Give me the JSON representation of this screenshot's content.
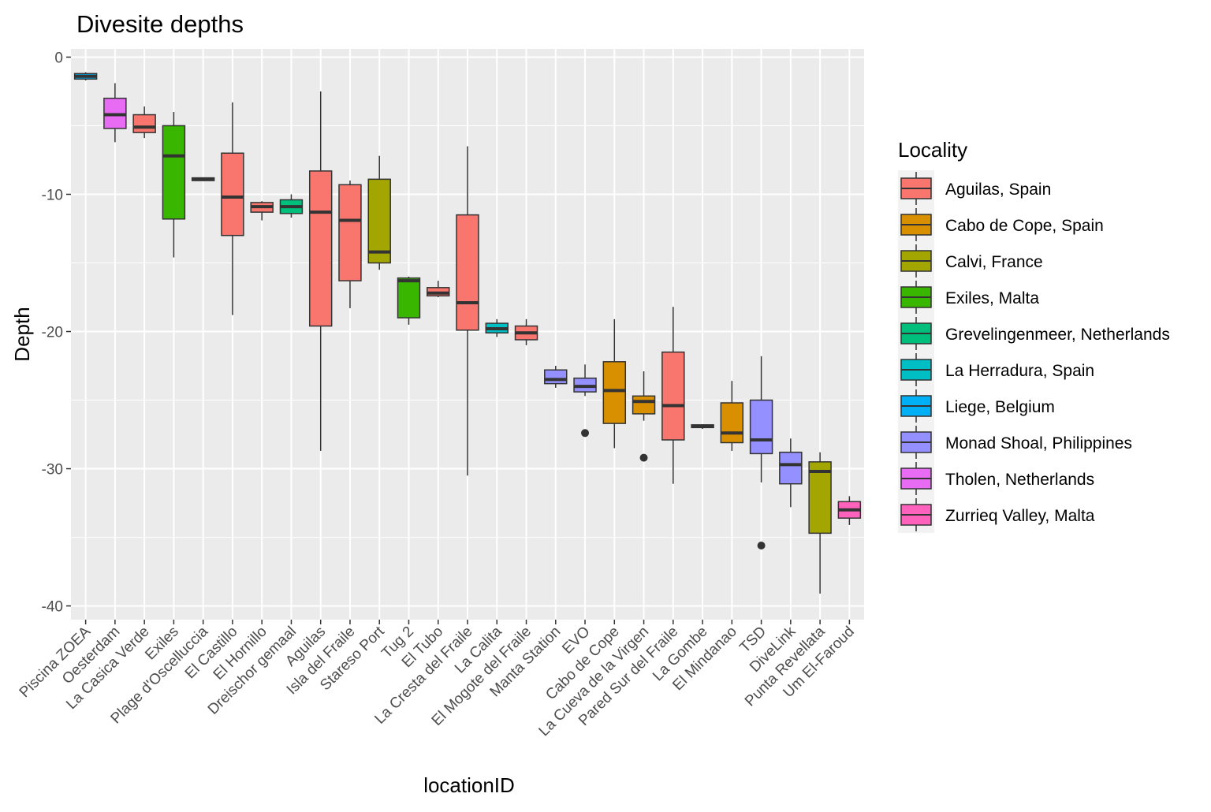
{
  "chart_data": {
    "type": "box",
    "title": "Divesite depths",
    "xlabel": "locationID",
    "ylabel": "Depth",
    "ylim": [
      -41,
      0.6
    ],
    "yticks": [
      0,
      -10,
      -20,
      -30,
      -40
    ],
    "grid": true,
    "legend_position": "right",
    "legend": {
      "title": "Locality",
      "entries": [
        {
          "label": "Aguilas, Spain",
          "color": "#F8766D"
        },
        {
          "label": "Cabo de Cope, Spain",
          "color": "#D89000"
        },
        {
          "label": "Calvi, France",
          "color": "#A3A500"
        },
        {
          "label": "Exiles, Malta",
          "color": "#39B600"
        },
        {
          "label": "Grevelingenmeer, Netherlands",
          "color": "#00BF7D"
        },
        {
          "label": "La Herradura, Spain",
          "color": "#00BFC4"
        },
        {
          "label": "Liege, Belgium",
          "color": "#00B0F6"
        },
        {
          "label": "Monad Shoal, Philippines",
          "color": "#9590FF"
        },
        {
          "label": "Tholen, Netherlands",
          "color": "#E76BF3"
        },
        {
          "label": "Zurrieq Valley, Malta",
          "color": "#FF62BC"
        }
      ]
    },
    "categories": [
      "Piscina ZOEA",
      "Oesterdam",
      "La Casica Verde",
      "Exiles",
      "Plage d'Oscelluccia",
      "El Castillo",
      "El Hornillo",
      "Dreischor gemaal",
      "Aguilas",
      "Isla del Fraile",
      "Stareso Port",
      "Tug 2",
      "El Tubo",
      "La Cresta del Fraile",
      "La Calita",
      "El Mogote del Fraile",
      "Manta Station",
      "EVO",
      "Cabo de Cope",
      "La Cueva de la Virgen",
      "Pared Sur del Fraile",
      "La Gombe",
      "El Mindanao",
      "TSD",
      "DiveLink",
      "Punta Revellata",
      "Um El-Faroud"
    ],
    "boxes": [
      {
        "locality": "Liege, Belgium",
        "color": "#00B0F6",
        "whisker_low": -1.7,
        "q1": -1.6,
        "median": -1.4,
        "q3": -1.2,
        "whisker_high": -1.1,
        "outliers": []
      },
      {
        "locality": "Tholen, Netherlands",
        "color": "#E76BF3",
        "whisker_low": -6.2,
        "q1": -5.2,
        "median": -4.2,
        "q3": -3.0,
        "whisker_high": -1.9,
        "outliers": []
      },
      {
        "locality": "Aguilas, Spain",
        "color": "#F8766D",
        "whisker_low": -5.9,
        "q1": -5.5,
        "median": -5.1,
        "q3": -4.2,
        "whisker_high": -3.6,
        "outliers": []
      },
      {
        "locality": "Exiles, Malta",
        "color": "#39B600",
        "whisker_low": -14.6,
        "q1": -11.8,
        "median": -7.2,
        "q3": -5.0,
        "whisker_high": -4.0,
        "outliers": []
      },
      {
        "locality": "Calvi, France",
        "color": "#A3A500",
        "whisker_low": -9.0,
        "q1": -9.0,
        "median": -8.9,
        "q3": -8.8,
        "whisker_high": -8.8,
        "outliers": []
      },
      {
        "locality": "Aguilas, Spain",
        "color": "#F8766D",
        "whisker_low": -18.8,
        "q1": -13.0,
        "median": -10.2,
        "q3": -7.0,
        "whisker_high": -3.3,
        "outliers": []
      },
      {
        "locality": "Aguilas, Spain",
        "color": "#F8766D",
        "whisker_low": -11.9,
        "q1": -11.3,
        "median": -10.9,
        "q3": -10.6,
        "whisker_high": -10.5,
        "outliers": []
      },
      {
        "locality": "Grevelingenmeer, Netherlands",
        "color": "#00BF7D",
        "whisker_low": -11.7,
        "q1": -11.4,
        "median": -10.9,
        "q3": -10.4,
        "whisker_high": -10.0,
        "outliers": []
      },
      {
        "locality": "Aguilas, Spain",
        "color": "#F8766D",
        "whisker_low": -28.7,
        "q1": -19.6,
        "median": -11.3,
        "q3": -8.3,
        "whisker_high": -2.5,
        "outliers": []
      },
      {
        "locality": "Aguilas, Spain",
        "color": "#F8766D",
        "whisker_low": -18.3,
        "q1": -16.3,
        "median": -11.9,
        "q3": -9.3,
        "whisker_high": -9.0,
        "outliers": []
      },
      {
        "locality": "Calvi, France",
        "color": "#A3A500",
        "whisker_low": -15.5,
        "q1": -15.0,
        "median": -14.2,
        "q3": -8.9,
        "whisker_high": -7.2,
        "outliers": []
      },
      {
        "locality": "Exiles, Malta",
        "color": "#39B600",
        "whisker_low": -19.5,
        "q1": -19.0,
        "median": -16.3,
        "q3": -16.1,
        "whisker_high": -16.0,
        "outliers": []
      },
      {
        "locality": "Aguilas, Spain",
        "color": "#F8766D",
        "whisker_low": -17.5,
        "q1": -17.4,
        "median": -17.2,
        "q3": -16.8,
        "whisker_high": -16.3,
        "outliers": []
      },
      {
        "locality": "Aguilas, Spain",
        "color": "#F8766D",
        "whisker_low": -30.5,
        "q1": -19.9,
        "median": -17.9,
        "q3": -11.5,
        "whisker_high": -6.5,
        "outliers": []
      },
      {
        "locality": "La Herradura, Spain",
        "color": "#00BFC4",
        "whisker_low": -20.4,
        "q1": -20.1,
        "median": -19.8,
        "q3": -19.4,
        "whisker_high": -19.1,
        "outliers": []
      },
      {
        "locality": "Aguilas, Spain",
        "color": "#F8766D",
        "whisker_low": -21.0,
        "q1": -20.6,
        "median": -20.1,
        "q3": -19.6,
        "whisker_high": -19.1,
        "outliers": []
      },
      {
        "locality": "Monad Shoal, Philippines",
        "color": "#9590FF",
        "whisker_low": -24.1,
        "q1": -23.8,
        "median": -23.5,
        "q3": -22.8,
        "whisker_high": -22.5,
        "outliers": []
      },
      {
        "locality": "Monad Shoal, Philippines",
        "color": "#9590FF",
        "whisker_low": -24.7,
        "q1": -24.4,
        "median": -24.0,
        "q3": -23.4,
        "whisker_high": -22.4,
        "outliers": [
          -27.4
        ]
      },
      {
        "locality": "Cabo de Cope, Spain",
        "color": "#D89000",
        "whisker_low": -28.5,
        "q1": -26.7,
        "median": -24.3,
        "q3": -22.2,
        "whisker_high": -19.1,
        "outliers": []
      },
      {
        "locality": "Cabo de Cope, Spain",
        "color": "#D89000",
        "whisker_low": -26.5,
        "q1": -26.0,
        "median": -25.1,
        "q3": -24.7,
        "whisker_high": -22.9,
        "outliers": [
          -29.2
        ]
      },
      {
        "locality": "Aguilas, Spain",
        "color": "#F8766D",
        "whisker_low": -31.1,
        "q1": -27.9,
        "median": -25.4,
        "q3": -21.5,
        "whisker_high": -18.2,
        "outliers": []
      },
      {
        "locality": "Monad Shoal, Philippines",
        "color": "#9590FF",
        "whisker_low": -27.1,
        "q1": -27.0,
        "median": -26.9,
        "q3": -26.8,
        "whisker_high": -26.8,
        "outliers": []
      },
      {
        "locality": "Cabo de Cope, Spain",
        "color": "#D89000",
        "whisker_low": -28.7,
        "q1": -28.1,
        "median": -27.4,
        "q3": -25.2,
        "whisker_high": -23.6,
        "outliers": []
      },
      {
        "locality": "Monad Shoal, Philippines",
        "color": "#9590FF",
        "whisker_low": -31.0,
        "q1": -28.9,
        "median": -27.9,
        "q3": -25.0,
        "whisker_high": -21.8,
        "outliers": [
          -35.6
        ]
      },
      {
        "locality": "Monad Shoal, Philippines",
        "color": "#9590FF",
        "whisker_low": -32.8,
        "q1": -31.1,
        "median": -29.7,
        "q3": -28.8,
        "whisker_high": -27.8,
        "outliers": []
      },
      {
        "locality": "Calvi, France",
        "color": "#A3A500",
        "whisker_low": -39.1,
        "q1": -34.7,
        "median": -30.2,
        "q3": -29.5,
        "whisker_high": -28.8,
        "outliers": []
      },
      {
        "locality": "Zurrieq Valley, Malta",
        "color": "#FF62BC",
        "whisker_low": -34.1,
        "q1": -33.6,
        "median": -33.0,
        "q3": -32.4,
        "whisker_high": -32.0,
        "outliers": []
      }
    ],
    "colors": {
      "panel": "#EBEBEB",
      "grid": "#FFFFFF",
      "box_line": "#333333",
      "axis_text": "#4d4d4d"
    }
  }
}
